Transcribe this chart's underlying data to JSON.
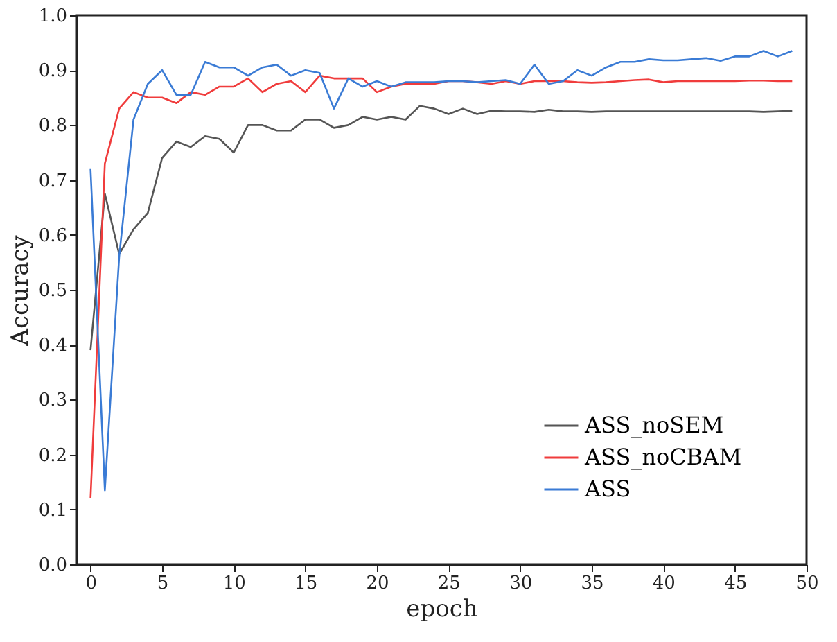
{
  "chart_data": {
    "type": "line",
    "xlabel": "epoch",
    "ylabel": "Accuracy",
    "x": [
      0,
      1,
      2,
      3,
      4,
      5,
      6,
      7,
      8,
      9,
      10,
      11,
      12,
      13,
      14,
      15,
      16,
      17,
      18,
      19,
      20,
      21,
      22,
      23,
      24,
      25,
      26,
      27,
      28,
      29,
      30,
      31,
      32,
      33,
      34,
      35,
      36,
      37,
      38,
      39,
      40,
      41,
      42,
      43,
      44,
      45,
      46,
      47,
      48,
      49
    ],
    "series": [
      {
        "name": "ASS_noSEM",
        "color": "#555555",
        "values": [
          0.39,
          0.675,
          0.565,
          0.61,
          0.64,
          0.74,
          0.77,
          0.76,
          0.78,
          0.775,
          0.75,
          0.8,
          0.8,
          0.79,
          0.79,
          0.81,
          0.81,
          0.795,
          0.8,
          0.815,
          0.81,
          0.815,
          0.81,
          0.835,
          0.83,
          0.82,
          0.83,
          0.82,
          0.826,
          0.825,
          0.825,
          0.824,
          0.828,
          0.825,
          0.825,
          0.824,
          0.825,
          0.825,
          0.825,
          0.825,
          0.825,
          0.825,
          0.825,
          0.825,
          0.825,
          0.825,
          0.825,
          0.824,
          0.825,
          0.826
        ]
      },
      {
        "name": "ASS_noCBAM",
        "color": "#f03c3c",
        "values": [
          0.12,
          0.73,
          0.83,
          0.86,
          0.85,
          0.85,
          0.84,
          0.86,
          0.855,
          0.87,
          0.87,
          0.885,
          0.86,
          0.875,
          0.88,
          0.86,
          0.89,
          0.885,
          0.885,
          0.885,
          0.86,
          0.87,
          0.875,
          0.875,
          0.875,
          0.88,
          0.88,
          0.878,
          0.875,
          0.88,
          0.875,
          0.88,
          0.88,
          0.88,
          0.878,
          0.877,
          0.878,
          0.88,
          0.882,
          0.883,
          0.878,
          0.88,
          0.88,
          0.88,
          0.88,
          0.88,
          0.881,
          0.881,
          0.88,
          0.88
        ]
      },
      {
        "name": "ASS",
        "color": "#3a7bd5",
        "values": [
          0.72,
          0.135,
          0.56,
          0.81,
          0.875,
          0.9,
          0.855,
          0.855,
          0.915,
          0.905,
          0.905,
          0.89,
          0.905,
          0.91,
          0.89,
          0.9,
          0.895,
          0.83,
          0.885,
          0.87,
          0.88,
          0.87,
          0.878,
          0.878,
          0.878,
          0.88,
          0.88,
          0.878,
          0.88,
          0.882,
          0.875,
          0.91,
          0.875,
          0.88,
          0.9,
          0.89,
          0.905,
          0.915,
          0.915,
          0.92,
          0.918,
          0.918,
          0.92,
          0.922,
          0.917,
          0.925,
          0.925,
          0.935,
          0.925,
          0.935
        ]
      }
    ],
    "xlim": [
      -1,
      50
    ],
    "xticks": [
      0,
      5,
      10,
      15,
      20,
      25,
      30,
      35,
      40,
      45,
      50
    ],
    "ylim": [
      0,
      1
    ],
    "yticks": [
      {
        "value": 0,
        "label": "0.0"
      },
      {
        "value": 0.1,
        "label": "0.1"
      },
      {
        "value": 0.2,
        "label": "0.2"
      },
      {
        "value": 0.3,
        "label": "0.3"
      },
      {
        "value": 0.4,
        "label": "0.4"
      },
      {
        "value": 0.5,
        "label": "0.5"
      },
      {
        "value": 0.6,
        "label": "0.6"
      },
      {
        "value": 0.7,
        "label": "0.7"
      },
      {
        "value": 0.8,
        "label": "0.8"
      },
      {
        "value": 0.9,
        "label": "0.9"
      },
      {
        "value": 1,
        "label": "1.0"
      }
    ],
    "legend": "bottom right",
    "grid": false,
    "marker": "none",
    "line_style": "solid"
  }
}
